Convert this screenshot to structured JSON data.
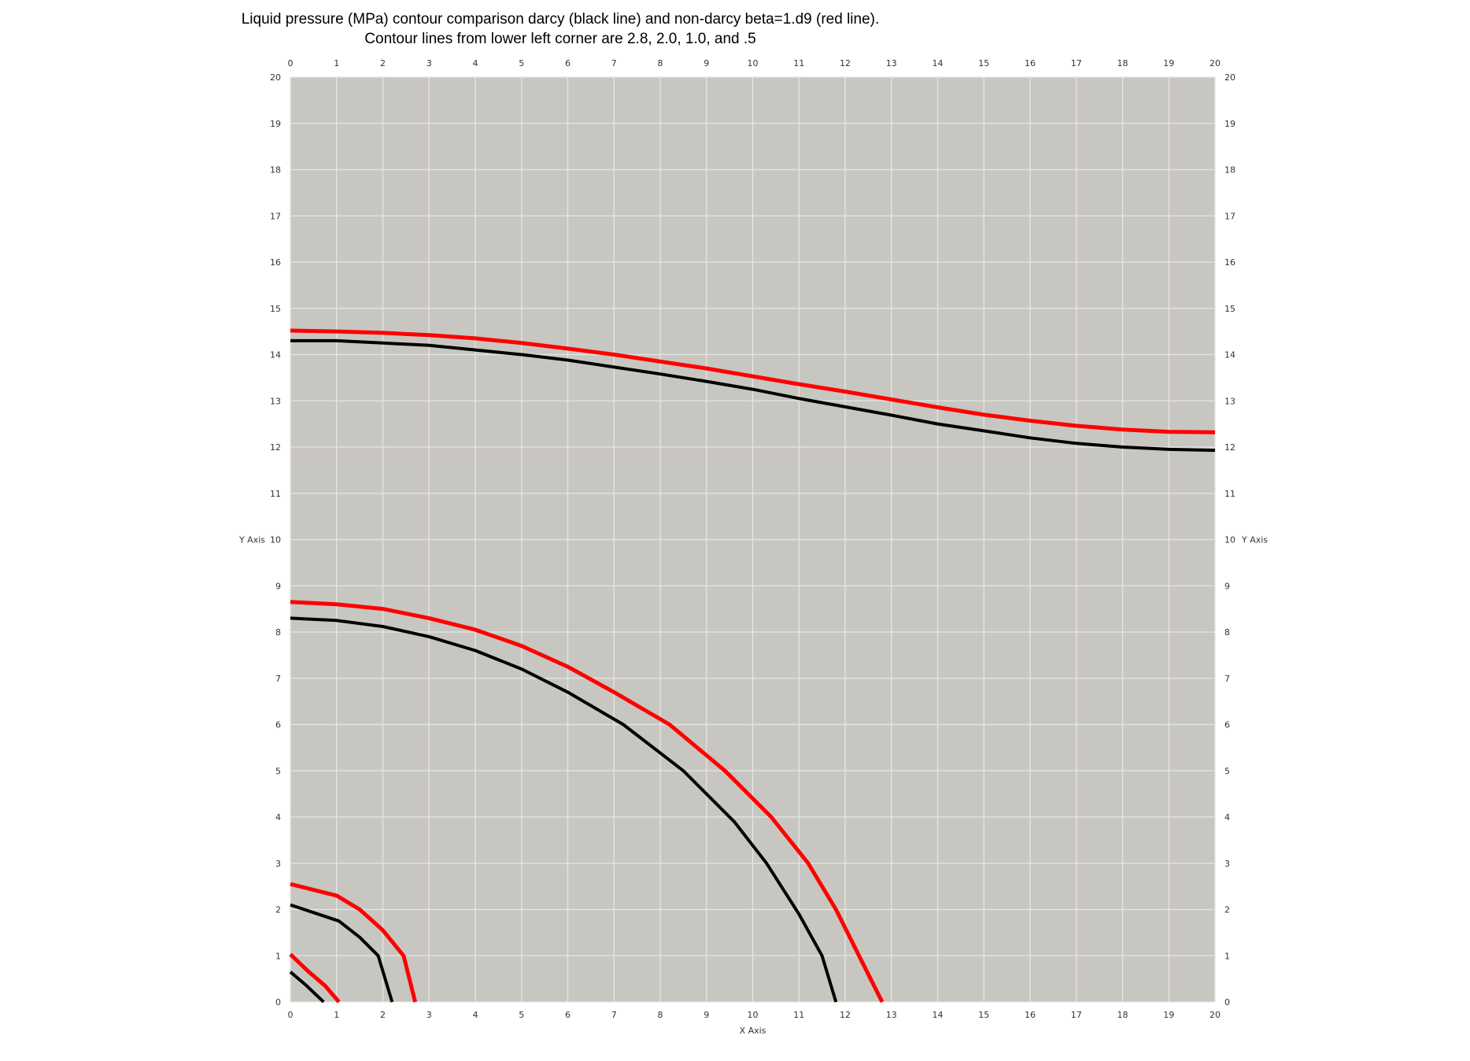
{
  "chart_data": {
    "type": "line",
    "title": "Liquid pressure (MPa) contour comparison darcy (black line) and non-darcy beta=1.d9 (red line).",
    "subtitle": "Contour lines from lower left corner are 2.8, 2.0, 1.0, and .5",
    "xlabel": "X Axis",
    "ylabel": "Y Axis",
    "xlim": [
      0,
      20
    ],
    "ylim": [
      0,
      20
    ],
    "x_ticks": [
      "0",
      "1",
      "2",
      "3",
      "4",
      "5",
      "6",
      "7",
      "8",
      "9",
      "10",
      "11",
      "12",
      "13",
      "14",
      "15",
      "16",
      "17",
      "18",
      "19",
      "20"
    ],
    "y_ticks": [
      "0",
      "1",
      "2",
      "3",
      "4",
      "5",
      "6",
      "7",
      "8",
      "9",
      "10",
      "11",
      "12",
      "13",
      "14",
      "15",
      "16",
      "17",
      "18",
      "19",
      "20"
    ],
    "grid": true,
    "background_color": "#c8c6c0",
    "grid_color": "#e6e6e6",
    "series": [
      {
        "color": "#000000",
        "points": [
          [
            0,
            0.65
          ],
          [
            0.35,
            0.35
          ],
          [
            0.72,
            0
          ]
        ]
      },
      {
        "color": "#ff0000",
        "points": [
          [
            0,
            1.03
          ],
          [
            0.4,
            0.65
          ],
          [
            0.75,
            0.35
          ],
          [
            1.05,
            0
          ]
        ]
      },
      {
        "color": "#000000",
        "points": [
          [
            0,
            2.1
          ],
          [
            1.05,
            1.75
          ],
          [
            1.5,
            1.4
          ],
          [
            1.9,
            1.0
          ],
          [
            2.2,
            0
          ]
        ]
      },
      {
        "color": "#ff0000",
        "points": [
          [
            0,
            2.55
          ],
          [
            1.0,
            2.3
          ],
          [
            1.5,
            2.0
          ],
          [
            2.0,
            1.55
          ],
          [
            2.45,
            1.0
          ],
          [
            2.7,
            0
          ]
        ]
      },
      {
        "color": "#000000",
        "points": [
          [
            0,
            8.3
          ],
          [
            1,
            8.25
          ],
          [
            2,
            8.12
          ],
          [
            3,
            7.9
          ],
          [
            4,
            7.6
          ],
          [
            5,
            7.2
          ],
          [
            6,
            6.7
          ],
          [
            7.2,
            6.0
          ],
          [
            8.5,
            5.0
          ],
          [
            9.6,
            3.9
          ],
          [
            10.3,
            3.0
          ],
          [
            11,
            1.9
          ],
          [
            11.5,
            1.0
          ],
          [
            11.8,
            0
          ]
        ]
      },
      {
        "color": "#ff0000",
        "points": [
          [
            0,
            8.65
          ],
          [
            1,
            8.6
          ],
          [
            2,
            8.5
          ],
          [
            3,
            8.3
          ],
          [
            4,
            8.05
          ],
          [
            5,
            7.7
          ],
          [
            6,
            7.25
          ],
          [
            7,
            6.7
          ],
          [
            8.2,
            6.0
          ],
          [
            9.4,
            5.0
          ],
          [
            10.4,
            4.0
          ],
          [
            11.2,
            3.0
          ],
          [
            11.8,
            2.0
          ],
          [
            12.3,
            1.0
          ],
          [
            12.8,
            0
          ]
        ]
      },
      {
        "color": "#000000",
        "points": [
          [
            0,
            14.3
          ],
          [
            1,
            14.3
          ],
          [
            2,
            14.25
          ],
          [
            3,
            14.2
          ],
          [
            4,
            14.1
          ],
          [
            5,
            14.0
          ],
          [
            6,
            13.88
          ],
          [
            7,
            13.73
          ],
          [
            8,
            13.58
          ],
          [
            9,
            13.42
          ],
          [
            10,
            13.25
          ],
          [
            11,
            13.05
          ],
          [
            12,
            12.87
          ],
          [
            13,
            12.69
          ],
          [
            14,
            12.5
          ],
          [
            15,
            12.35
          ],
          [
            16,
            12.2
          ],
          [
            17,
            12.08
          ],
          [
            18,
            12.0
          ],
          [
            19,
            11.95
          ],
          [
            20,
            11.93
          ]
        ]
      },
      {
        "color": "#ff0000",
        "points": [
          [
            0,
            14.52
          ],
          [
            1,
            14.5
          ],
          [
            2,
            14.47
          ],
          [
            3,
            14.42
          ],
          [
            4,
            14.35
          ],
          [
            5,
            14.25
          ],
          [
            6,
            14.13
          ],
          [
            7,
            14.0
          ],
          [
            8,
            13.85
          ],
          [
            9,
            13.7
          ],
          [
            10,
            13.53
          ],
          [
            11,
            13.36
          ],
          [
            12,
            13.2
          ],
          [
            13,
            13.03
          ],
          [
            14,
            12.86
          ],
          [
            15,
            12.7
          ],
          [
            16,
            12.57
          ],
          [
            17,
            12.46
          ],
          [
            18,
            12.38
          ],
          [
            19,
            12.33
          ],
          [
            20,
            12.32
          ]
        ]
      }
    ]
  }
}
